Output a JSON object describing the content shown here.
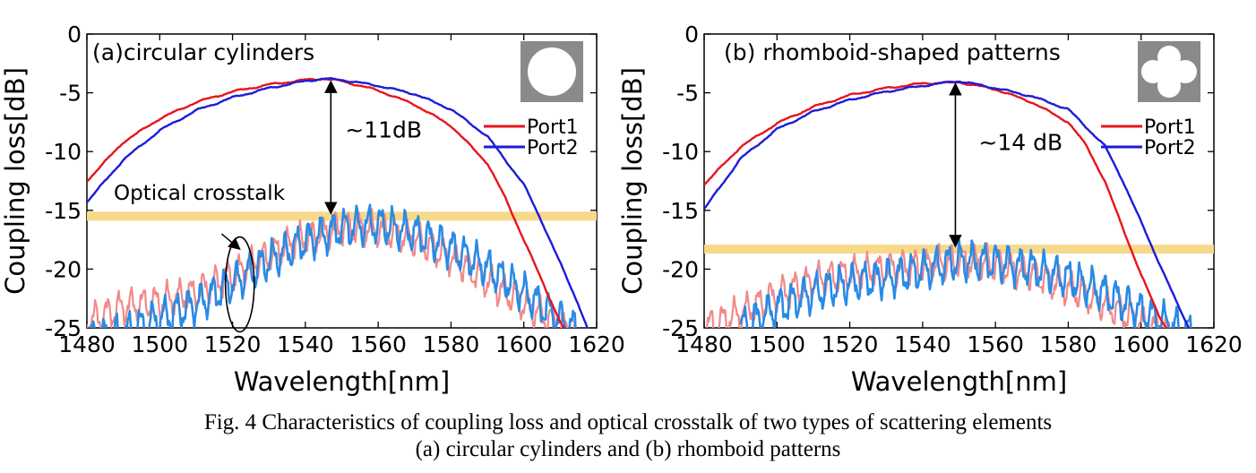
{
  "caption": {
    "line1": "Fig. 4 Characteristics of coupling loss and optical crosstalk of two types of scattering elements",
    "line2": "(a) circular cylinders and (b) rhomboid patterns"
  },
  "colors": {
    "port1": "#e8141c",
    "port2": "#1c1cd8",
    "port1_crosstalk": "#f08a8a",
    "port2_crosstalk": "#2a8ae6",
    "threshold_band": "#f7d98b",
    "inset_gray": "#8a8a8a"
  },
  "chart_data": [
    {
      "type": "line",
      "title": "(a)circular cylinders",
      "xlabel": "Wavelength[nm]",
      "ylabel": "Coupling loss[dB]",
      "xlim": [
        1480,
        1620
      ],
      "ylim": [
        -25,
        0
      ],
      "xticks": [
        1480,
        1500,
        1520,
        1540,
        1560,
        1580,
        1600,
        1620
      ],
      "yticks": [
        0,
        -5,
        -10,
        -15,
        -20,
        -25
      ],
      "legend": [
        "Port1",
        "Port2"
      ],
      "legend_position": "right",
      "inset_icon": "circle-cell-icon",
      "threshold_level": -15.5,
      "annotations": {
        "difference": "~11dB",
        "crosstalk": "Optical crosstalk",
        "arrow_x": 1547,
        "arrow_from": -3.8,
        "arrow_to": -15.5,
        "ellipse_center": [
          1522,
          -21.3
        ],
        "crosstalk_arrow_from": [
          1517,
          -17
        ],
        "crosstalk_arrow_to": [
          1522,
          -18.3
        ]
      },
      "series": [
        {
          "name": "Port1",
          "x": [
            1480,
            1490,
            1500,
            1510,
            1520,
            1530,
            1540,
            1545,
            1550,
            1560,
            1570,
            1580,
            1590,
            1595,
            1600,
            1605,
            1610,
            1615
          ],
          "values": [
            -12.5,
            -9.2,
            -7.2,
            -5.8,
            -4.9,
            -4.3,
            -3.9,
            -3.8,
            -4.0,
            -4.8,
            -6.0,
            -7.8,
            -11.0,
            -14.0,
            -17.5,
            -21.0,
            -24.5,
            -27.0
          ]
        },
        {
          "name": "Port2",
          "x": [
            1480,
            1490,
            1500,
            1510,
            1520,
            1530,
            1540,
            1545,
            1550,
            1560,
            1570,
            1580,
            1590,
            1600,
            1605,
            1610,
            1615,
            1618
          ],
          "values": [
            -14.3,
            -10.7,
            -8.2,
            -6.5,
            -5.4,
            -4.6,
            -4.0,
            -3.8,
            -3.9,
            -4.4,
            -5.1,
            -6.4,
            -8.7,
            -12.8,
            -16.0,
            -19.5,
            -23.0,
            -25.5
          ]
        },
        {
          "name": "Port1 crosstalk",
          "x": [
            1480,
            1490,
            1500,
            1510,
            1520,
            1530,
            1540,
            1550,
            1560,
            1570,
            1580,
            1590,
            1600,
            1610,
            1614
          ],
          "values": [
            -24.5,
            -23.2,
            -22.8,
            -22.0,
            -20.5,
            -18.8,
            -17.3,
            -16.5,
            -16.6,
            -17.5,
            -19.0,
            -21.0,
            -23.0,
            -24.8,
            -25.5
          ]
        },
        {
          "name": "Port2 crosstalk",
          "x": [
            1480,
            1490,
            1500,
            1510,
            1520,
            1530,
            1540,
            1550,
            1560,
            1570,
            1580,
            1590,
            1600,
            1610,
            1616
          ],
          "values": [
            -26.0,
            -25.5,
            -24.2,
            -23.0,
            -21.2,
            -19.3,
            -17.6,
            -16.5,
            -16.2,
            -16.9,
            -18.2,
            -19.9,
            -22.0,
            -24.3,
            -25.5
          ]
        }
      ]
    },
    {
      "type": "line",
      "title": "(b) rhomboid-shaped patterns",
      "xlabel": "Wavelength[nm]",
      "ylabel": "Coupling loss[dB]",
      "xlim": [
        1480,
        1620
      ],
      "ylim": [
        -25,
        0
      ],
      "xticks": [
        1480,
        1500,
        1520,
        1540,
        1560,
        1580,
        1600,
        1620
      ],
      "yticks": [
        0,
        -5,
        -10,
        -15,
        -20,
        -25
      ],
      "legend": [
        "Port1",
        "Port2"
      ],
      "legend_position": "right",
      "inset_icon": "rhomboid-cell-icon",
      "threshold_level": -18.3,
      "annotations": {
        "difference": "~14 dB",
        "arrow_x": 1549,
        "arrow_from": -4.0,
        "arrow_to": -18.3
      },
      "series": [
        {
          "name": "Port1",
          "x": [
            1480,
            1490,
            1500,
            1510,
            1520,
            1530,
            1540,
            1550,
            1560,
            1570,
            1580,
            1585,
            1590,
            1595,
            1600,
            1605,
            1608
          ],
          "values": [
            -12.8,
            -9.6,
            -7.6,
            -6.2,
            -5.2,
            -4.6,
            -4.2,
            -4.1,
            -4.7,
            -5.8,
            -7.5,
            -9.5,
            -12.5,
            -16.5,
            -20.5,
            -24.0,
            -25.5
          ]
        },
        {
          "name": "Port2",
          "x": [
            1480,
            1490,
            1500,
            1510,
            1520,
            1530,
            1540,
            1550,
            1560,
            1570,
            1580,
            1590,
            1595,
            1600,
            1605,
            1610,
            1614
          ],
          "values": [
            -14.9,
            -10.6,
            -8.1,
            -6.6,
            -5.6,
            -4.9,
            -4.4,
            -4.0,
            -4.6,
            -5.3,
            -6.4,
            -9.5,
            -12.5,
            -16.0,
            -19.5,
            -23.0,
            -25.5
          ]
        },
        {
          "name": "Port1 crosstalk",
          "x": [
            1480,
            1490,
            1500,
            1510,
            1520,
            1530,
            1540,
            1550,
            1560,
            1570,
            1580,
            1590,
            1600,
            1608
          ],
          "values": [
            -25.0,
            -23.8,
            -22.2,
            -21.0,
            -20.4,
            -20.0,
            -19.7,
            -19.3,
            -19.6,
            -20.4,
            -21.6,
            -23.0,
            -24.5,
            -25.5
          ]
        },
        {
          "name": "Port2 crosstalk",
          "x": [
            1490,
            1500,
            1510,
            1520,
            1530,
            1540,
            1550,
            1560,
            1570,
            1580,
            1590,
            1600,
            1610,
            1614
          ],
          "values": [
            -25.0,
            -23.3,
            -22.0,
            -21.2,
            -20.7,
            -20.1,
            -19.3,
            -19.4,
            -19.9,
            -20.8,
            -22.0,
            -23.6,
            -25.0,
            -25.5
          ]
        }
      ]
    }
  ]
}
